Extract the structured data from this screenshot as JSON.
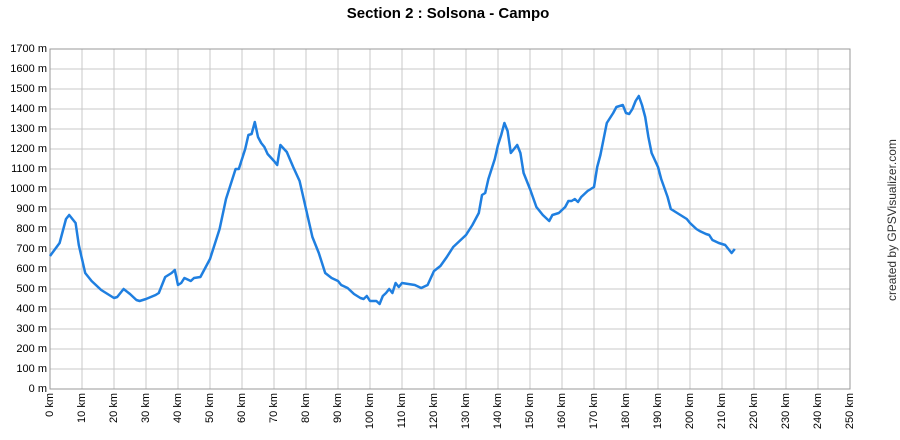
{
  "chart_data": {
    "type": "line",
    "title": "Section 2 : Solsona - Campo",
    "credit": "created by GPSVisualizer.com",
    "color": "#1f7fe0",
    "grid": true,
    "xlim": [
      0,
      250
    ],
    "ylim": [
      0,
      1700
    ],
    "xticks": [
      {
        "value": 0,
        "label": "0 km"
      },
      {
        "value": 10,
        "label": "10 km"
      },
      {
        "value": 20,
        "label": "20 km"
      },
      {
        "value": 30,
        "label": "30 km"
      },
      {
        "value": 40,
        "label": "40 km"
      },
      {
        "value": 50,
        "label": "50 km"
      },
      {
        "value": 60,
        "label": "60 km"
      },
      {
        "value": 70,
        "label": "70 km"
      },
      {
        "value": 80,
        "label": "80 km"
      },
      {
        "value": 90,
        "label": "90 km"
      },
      {
        "value": 100,
        "label": "100 km"
      },
      {
        "value": 110,
        "label": "110 km"
      },
      {
        "value": 120,
        "label": "120 km"
      },
      {
        "value": 130,
        "label": "130 km"
      },
      {
        "value": 140,
        "label": "140 km"
      },
      {
        "value": 150,
        "label": "150 km"
      },
      {
        "value": 160,
        "label": "160 km"
      },
      {
        "value": 170,
        "label": "170 km"
      },
      {
        "value": 180,
        "label": "180 km"
      },
      {
        "value": 190,
        "label": "190 km"
      },
      {
        "value": 200,
        "label": "200 km"
      },
      {
        "value": 210,
        "label": "210 km"
      },
      {
        "value": 220,
        "label": "220 km"
      },
      {
        "value": 230,
        "label": "230 km"
      },
      {
        "value": 240,
        "label": "240 km"
      },
      {
        "value": 250,
        "label": "250 km"
      }
    ],
    "yticks": [
      {
        "value": 0,
        "label": "0 m"
      },
      {
        "value": 100,
        "label": "100 m"
      },
      {
        "value": 200,
        "label": "200 m"
      },
      {
        "value": 300,
        "label": "300 m"
      },
      {
        "value": 400,
        "label": "400 m"
      },
      {
        "value": 500,
        "label": "500 m"
      },
      {
        "value": 600,
        "label": "600 m"
      },
      {
        "value": 700,
        "label": "700 m"
      },
      {
        "value": 800,
        "label": "800 m"
      },
      {
        "value": 900,
        "label": "900 m"
      },
      {
        "value": 1000,
        "label": "1000 m"
      },
      {
        "value": 1100,
        "label": "1100 m"
      },
      {
        "value": 1200,
        "label": "1200 m"
      },
      {
        "value": 1300,
        "label": "1300 m"
      },
      {
        "value": 1400,
        "label": "1400 m"
      },
      {
        "value": 1500,
        "label": "1500 m"
      },
      {
        "value": 1600,
        "label": "1600 m"
      },
      {
        "value": 1700,
        "label": "1700 m"
      }
    ],
    "x": [
      0,
      3,
      5,
      6,
      8,
      9,
      11,
      13,
      16,
      19,
      20,
      21,
      23,
      25,
      27,
      28,
      30,
      33,
      34,
      36,
      38,
      39,
      40,
      41,
      42,
      44,
      45,
      47,
      50,
      53,
      55,
      57,
      58,
      59,
      61,
      62,
      63,
      64,
      65,
      66,
      67,
      68,
      70,
      71,
      72,
      74,
      76,
      78,
      80,
      82,
      84,
      86,
      88,
      90,
      91,
      93,
      95,
      97,
      98,
      99,
      100,
      102,
      103,
      104,
      105,
      106,
      107,
      108,
      109,
      110,
      112,
      114,
      116,
      118,
      120,
      122,
      124,
      126,
      128,
      130,
      132,
      134,
      135,
      136,
      137,
      139,
      140,
      141,
      142,
      143,
      144,
      145,
      146,
      147,
      148,
      150,
      152,
      154,
      156,
      157,
      159,
      161,
      162,
      163,
      164,
      165,
      166,
      168,
      170,
      171,
      172,
      174,
      176,
      177,
      179,
      180,
      181,
      182,
      183,
      184,
      185,
      186,
      187,
      188,
      190,
      191,
      193,
      194,
      196,
      198,
      199,
      200,
      202,
      203,
      205,
      206,
      207,
      209,
      211,
      212,
      213,
      214
    ],
    "values": [
      665,
      730,
      850,
      870,
      830,
      720,
      580,
      540,
      495,
      465,
      455,
      460,
      500,
      475,
      445,
      440,
      450,
      470,
      480,
      560,
      580,
      595,
      520,
      530,
      555,
      540,
      555,
      560,
      650,
      800,
      950,
      1050,
      1100,
      1100,
      1200,
      1270,
      1275,
      1335,
      1260,
      1230,
      1210,
      1175,
      1140,
      1120,
      1220,
      1185,
      1110,
      1040,
      900,
      760,
      680,
      580,
      555,
      540,
      520,
      505,
      475,
      455,
      450,
      465,
      440,
      440,
      425,
      465,
      480,
      500,
      480,
      530,
      510,
      530,
      525,
      520,
      505,
      520,
      590,
      615,
      660,
      710,
      740,
      770,
      820,
      880,
      970,
      980,
      1050,
      1150,
      1220,
      1270,
      1330,
      1290,
      1180,
      1200,
      1220,
      1180,
      1080,
      1000,
      910,
      870,
      840,
      870,
      880,
      910,
      940,
      940,
      950,
      935,
      960,
      990,
      1010,
      1110,
      1170,
      1330,
      1380,
      1410,
      1420,
      1380,
      1375,
      1400,
      1440,
      1465,
      1420,
      1360,
      1260,
      1180,
      1110,
      1050,
      960,
      900,
      880,
      860,
      850,
      830,
      800,
      790,
      775,
      770,
      745,
      730,
      720,
      700,
      680,
      700
    ]
  }
}
